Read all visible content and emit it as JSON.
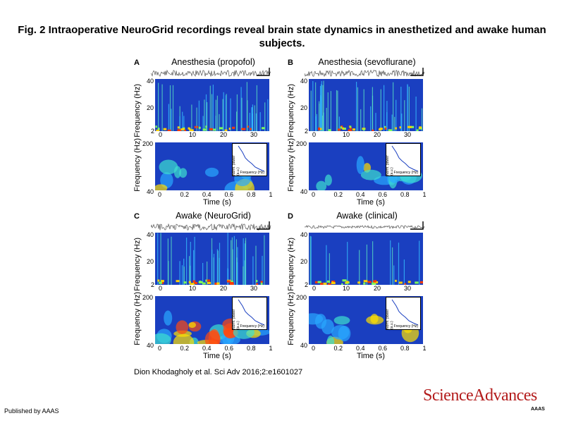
{
  "figure": {
    "title": "Fig. 2 Intraoperative NeuroGrid recordings reveal brain state dynamics in anesthetized and awake human subjects.",
    "citation": "Dion Khodagholy et al. Sci Adv 2016;2:e1601027",
    "published": "Published by AAAS",
    "logo": "ScienceAdvances",
    "logo_sub": "AAAS",
    "colors": {
      "accent": "#b31b1b",
      "spec_bg": "#1a3fc0"
    }
  },
  "panels": [
    {
      "label": "A",
      "title": "Anesthesia (propofol)"
    },
    {
      "label": "B",
      "title": "Anesthesia (sevoflurane)"
    },
    {
      "label": "C",
      "title": "Awake (NeuroGrid)"
    },
    {
      "label": "D",
      "title": "Awake (clinical)"
    }
  ],
  "axes": {
    "freq_label": "Frequency (Hz)",
    "time_label": "Time (s)",
    "top_y_ticks": [
      "40",
      "20",
      "2"
    ],
    "top_x_ticks": [
      "0",
      "10",
      "20",
      "30"
    ],
    "bot_y_ticks": [
      "200",
      "40"
    ],
    "bot_x_ticks": [
      "0",
      "0.2",
      "0.4",
      "0.6",
      "0.8",
      "1"
    ],
    "inset_y": "Norm. power (a.u.)",
    "inset_x": "Frequency (Hz)"
  },
  "chart_data": [
    {
      "type": "heatmap",
      "title": "Anesthesia (propofol)",
      "xlabel": "",
      "ylabel": "Frequency (Hz)",
      "ylim": [
        2,
        40
      ],
      "xlim": [
        0,
        35
      ]
    },
    {
      "type": "heatmap",
      "title": "",
      "xlabel": "Time (s)",
      "ylabel": "Frequency (Hz)",
      "ylim": [
        40,
        200
      ],
      "xlim": [
        0,
        1
      ]
    },
    {
      "type": "heatmap",
      "title": "Anesthesia (sevoflurane)",
      "xlabel": "",
      "ylabel": "Frequency (Hz)",
      "ylim": [
        2,
        40
      ],
      "xlim": [
        0,
        35
      ]
    },
    {
      "type": "heatmap",
      "title": "",
      "xlabel": "Time (s)",
      "ylabel": "Frequency (Hz)",
      "ylim": [
        40,
        200
      ],
      "xlim": [
        0,
        1
      ]
    },
    {
      "type": "heatmap",
      "title": "Awake (NeuroGrid)",
      "xlabel": "",
      "ylabel": "Frequency (Hz)",
      "ylim": [
        2,
        40
      ],
      "xlim": [
        0,
        35
      ]
    },
    {
      "type": "heatmap",
      "title": "",
      "xlabel": "Time (s)",
      "ylabel": "Frequency (Hz)",
      "ylim": [
        40,
        200
      ],
      "xlim": [
        0,
        1
      ]
    },
    {
      "type": "heatmap",
      "title": "Awake (clinical)",
      "xlabel": "",
      "ylabel": "Frequency (Hz)",
      "ylim": [
        2,
        40
      ],
      "xlim": [
        0,
        35
      ]
    },
    {
      "type": "heatmap",
      "title": "",
      "xlabel": "Time (s)",
      "ylabel": "Frequency (Hz)",
      "ylim": [
        40,
        200
      ],
      "xlim": [
        0,
        1
      ]
    }
  ]
}
